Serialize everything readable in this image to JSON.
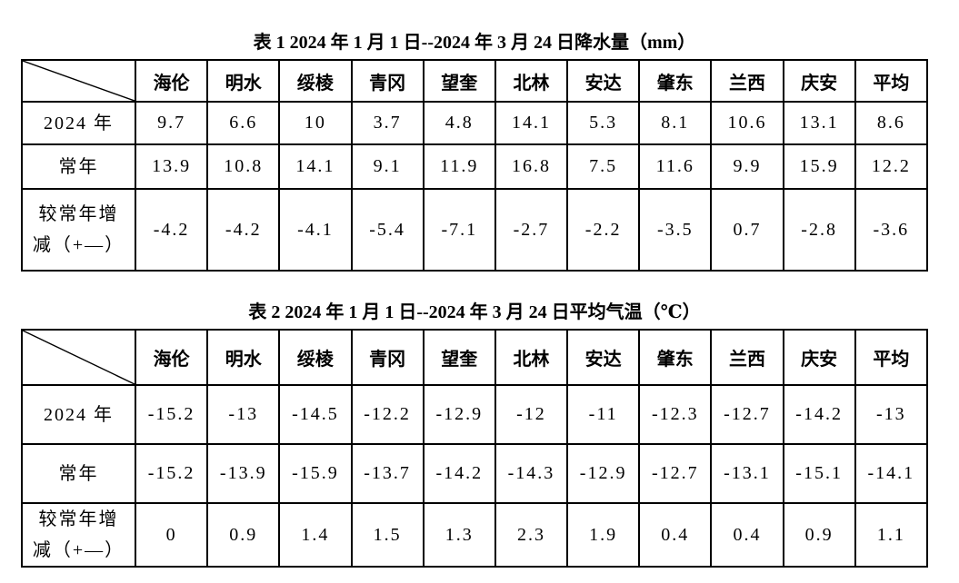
{
  "colors": {
    "background": "#ffffff",
    "border": "#000000",
    "text": "#000000"
  },
  "table1": {
    "title": "表 1  2024 年 1 月 1 日--2024 年 3 月 24 日降水量（mm）",
    "columns": [
      "海伦",
      "明水",
      "绥棱",
      "青冈",
      "望奎",
      "北林",
      "安达",
      "肇东",
      "兰西",
      "庆安",
      "平均"
    ],
    "rows": [
      {
        "label": "2024 年",
        "values": [
          "9.7",
          "6.6",
          "10",
          "3.7",
          "4.8",
          "14.1",
          "5.3",
          "8.1",
          "10.6",
          "13.1",
          "8.6"
        ]
      },
      {
        "label": "常年",
        "values": [
          "13.9",
          "10.8",
          "14.1",
          "9.1",
          "11.9",
          "16.8",
          "7.5",
          "11.6",
          "9.9",
          "15.9",
          "12.2"
        ]
      },
      {
        "label": "较常年增\n减（+—）",
        "values": [
          "-4.2",
          "-4.2",
          "-4.1",
          "-5.4",
          "-7.1",
          "-2.7",
          "-2.2",
          "-3.5",
          "0.7",
          "-2.8",
          "-3.6"
        ]
      }
    ]
  },
  "table2": {
    "title": "表 2  2024 年 1 月 1 日--2024 年 3 月 24 日平均气温（℃）",
    "columns": [
      "海伦",
      "明水",
      "绥棱",
      "青冈",
      "望奎",
      "北林",
      "安达",
      "肇东",
      "兰西",
      "庆安",
      "平均"
    ],
    "rows": [
      {
        "label": "2024 年",
        "values": [
          "-15.2",
          "-13",
          "-14.5",
          "-12.2",
          "-12.9",
          "-12",
          "-11",
          "-12.3",
          "-12.7",
          "-14.2",
          "-13"
        ]
      },
      {
        "label": "常年",
        "values": [
          "-15.2",
          "-13.9",
          "-15.9",
          "-13.7",
          "-14.2",
          "-14.3",
          "-12.9",
          "-12.7",
          "-13.1",
          "-15.1",
          "-14.1"
        ]
      },
      {
        "label": "较常年增\n减（+—）",
        "values": [
          "0",
          "0.9",
          "1.4",
          "1.5",
          "1.3",
          "2.3",
          "1.9",
          "0.4",
          "0.4",
          "0.9",
          "1.1"
        ]
      }
    ]
  }
}
